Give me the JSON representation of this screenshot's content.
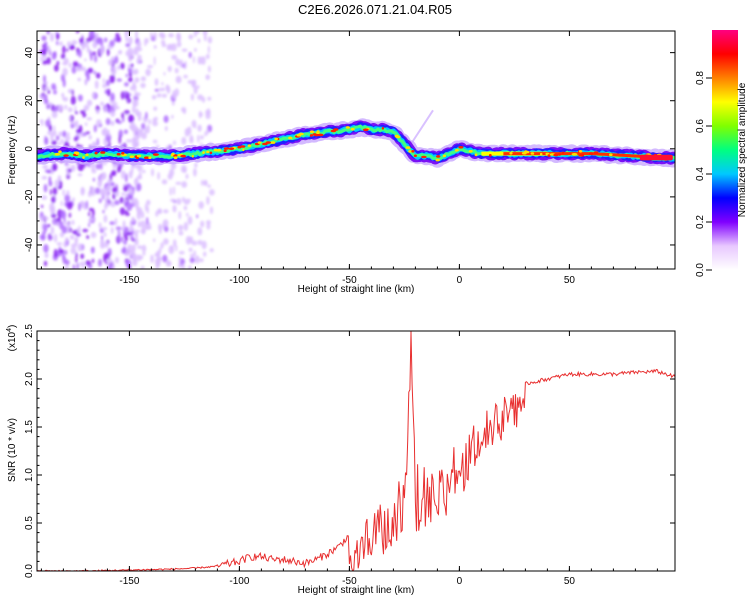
{
  "title": "C2E6.2026.071.21.04.R05",
  "chart_data": [
    {
      "type": "heatmap",
      "name": "spectrogram",
      "xlabel": "Height of straight line (km)",
      "ylabel": "Frequency (Hz)",
      "xlim": [
        -192,
        98
      ],
      "ylim": [
        -50,
        49
      ],
      "xticks": [
        -150,
        -100,
        -50,
        0,
        50
      ],
      "xtick_labels": [
        "-150",
        "-100",
        "-50",
        "0",
        "50"
      ],
      "yticks": [
        -40,
        -20,
        0,
        20,
        40
      ],
      "ytick_labels": [
        "-40",
        "-20",
        "0",
        "20",
        "40"
      ],
      "ridge": {
        "x": [
          -192,
          -180,
          -170,
          -160,
          -150,
          -140,
          -130,
          -120,
          -110,
          -100,
          -90,
          -80,
          -70,
          -60,
          -50,
          -45,
          -40,
          -35,
          -30,
          -25,
          -20,
          -15,
          -10,
          -5,
          0,
          5,
          10,
          20,
          40,
          60,
          80,
          98
        ],
        "y": [
          -3,
          -2,
          -3,
          -2,
          -3,
          -3,
          -3,
          -2,
          -1,
          0,
          2,
          4,
          6,
          7,
          8,
          9,
          8,
          8,
          7,
          2,
          -3,
          -3,
          -4,
          -2,
          0,
          -1,
          -2,
          -2,
          -2,
          -2,
          -3,
          -4
        ]
      },
      "colorbar": {
        "label": "Normalized spectral amplitude",
        "ticks": [
          0.0,
          0.2,
          0.4,
          0.6,
          0.8
        ],
        "tick_labels": [
          "0.0",
          "0.2",
          "0.4",
          "0.6",
          "0.8"
        ],
        "colors": [
          "#ffffff",
          "#e8c8ff",
          "#8000ff",
          "#0000ff",
          "#00c8ff",
          "#00ff80",
          "#80ff00",
          "#ffff00",
          "#ff8000",
          "#ff0000",
          "#ff0080"
        ]
      }
    },
    {
      "type": "line",
      "name": "snr",
      "xlabel": "Height of straight line (km)",
      "ylabel": "SNR (10 * v/v)",
      "scale_label": "(x10",
      "scale_exp": "4",
      "scale_close": ")",
      "xlim": [
        -192,
        98
      ],
      "ylim": [
        0,
        2.5
      ],
      "xticks": [
        -150,
        -100,
        -50,
        0,
        50
      ],
      "xtick_labels": [
        "-150",
        "-100",
        "-50",
        "0",
        "50"
      ],
      "yticks": [
        0.0,
        0.5,
        1.0,
        1.5,
        2.0,
        2.5
      ],
      "ytick_labels": [
        "0.0",
        "0.5",
        "1.0",
        "1.5",
        "2.0",
        "2.5"
      ],
      "color": "#e83030",
      "series": [
        {
          "name": "SNR",
          "x": [
            -192,
            -170,
            -150,
            -130,
            -120,
            -110,
            -100,
            -95,
            -90,
            -85,
            -80,
            -75,
            -70,
            -65,
            -60,
            -55,
            -50,
            -45,
            -40,
            -35,
            -30,
            -25,
            -22,
            -20,
            -15,
            -10,
            -5,
            0,
            5,
            10,
            15,
            20,
            25,
            30,
            40,
            50,
            60,
            70,
            80,
            90,
            98
          ],
          "values": [
            0.0,
            0.0,
            0.01,
            0.02,
            0.03,
            0.05,
            0.1,
            0.15,
            0.15,
            0.12,
            0.12,
            0.1,
            0.08,
            0.12,
            0.18,
            0.25,
            0.38,
            0.5,
            0.6,
            0.75,
            0.85,
            1.0,
            2.5,
            1.1,
            1.05,
            1.1,
            1.2,
            1.3,
            1.45,
            1.55,
            1.7,
            1.8,
            1.85,
            1.95,
            2.0,
            2.05,
            2.05,
            2.05,
            2.07,
            2.08,
            2.02
          ]
        }
      ]
    }
  ]
}
